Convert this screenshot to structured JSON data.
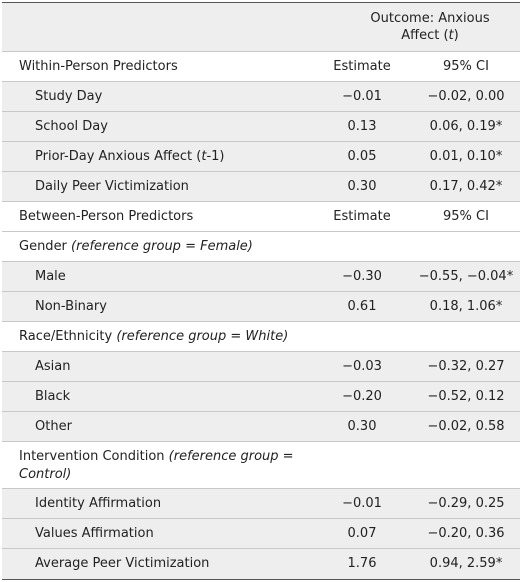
{
  "header": {
    "outcome_line1": "Outcome: Anxious",
    "outcome_line2_pre": "Affect (",
    "outcome_line2_t": "t",
    "outcome_line2_post": ")"
  },
  "within": {
    "title": "Within-Person Predictors",
    "col_estimate": "Estimate",
    "col_ci": "95% CI",
    "rows": [
      {
        "label": "Study Day",
        "estimate": "−0.01",
        "ci": "−0.02, 0.00"
      },
      {
        "label": "School Day",
        "estimate": "0.13",
        "ci": "0.06, 0.19*"
      },
      {
        "label_pre": "Prior-Day Anxious Affect (",
        "label_t": "t",
        "label_post": "-1)",
        "estimate": "0.05",
        "ci": "0.01, 0.10*"
      },
      {
        "label": "Daily Peer Victimization",
        "estimate": "0.30",
        "ci": "0.17, 0.42*"
      }
    ]
  },
  "between": {
    "title": "Between-Person Predictors",
    "col_estimate": "Estimate",
    "col_ci": "95% CI"
  },
  "gender": {
    "title": "Gender",
    "ref": "(reference group = Female)",
    "rows": [
      {
        "label": "Male",
        "estimate": "−0.30",
        "ci": "−0.55, −0.04*"
      },
      {
        "label": "Non-Binary",
        "estimate": "0.61",
        "ci": "0.18, 1.06*"
      }
    ]
  },
  "race": {
    "title": "Race/Ethnicity",
    "ref": "(reference group = White)",
    "rows": [
      {
        "label": "Asian",
        "estimate": "−0.03",
        "ci": "−0.32, 0.27"
      },
      {
        "label": "Black",
        "estimate": "−0.20",
        "ci": "−0.52, 0.12"
      },
      {
        "label": "Other",
        "estimate": "0.30",
        "ci": "−0.02, 0.58"
      }
    ]
  },
  "intervention": {
    "title": "Intervention Condition",
    "ref_line1": "(reference group =",
    "ref_line2": "Control)",
    "rows": [
      {
        "label": "Identity Affirmation",
        "estimate": "−0.01",
        "ci": "−0.29, 0.25"
      },
      {
        "label": "Values Affirmation",
        "estimate": "0.07",
        "ci": "−0.20, 0.36"
      },
      {
        "label": "Average Peer Victimization",
        "estimate": "1.76",
        "ci": "0.94, 2.59*"
      }
    ]
  }
}
